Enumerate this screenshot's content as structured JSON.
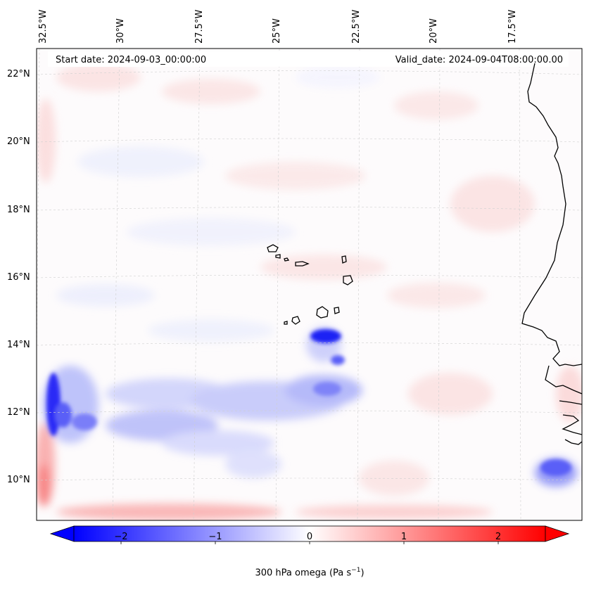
{
  "header": {
    "start_date": "Start date: 2024-09-03_00:00:00",
    "valid_date": "Valid_date: 2024-09-04T08:00:00.00"
  },
  "axes": {
    "lon_labels": [
      "32.5°W",
      "30°W",
      "27.5°W",
      "25°W",
      "22.5°W",
      "20°W",
      "17.5°W"
    ],
    "lat_labels": [
      "22°N",
      "20°N",
      "18°N",
      "16°N",
      "14°N",
      "12°N",
      "10°N"
    ]
  },
  "colorbar": {
    "ticks": [
      "−2",
      "−1",
      "0",
      "1",
      "2"
    ],
    "label": "300 hPa omega (Pa s",
    "label_sup": "−1",
    "label_end": ")",
    "vmin": -2.6,
    "vmax": 2.6,
    "neg_color": "#0000ff",
    "pos_color": "#ff0000"
  },
  "map": {
    "field": "300 hPa omega",
    "features": [
      "Cabo Verde islands",
      "West African coastline (Senegal, Gambia, Guinea-Bissau)"
    ],
    "colormap": "bwr",
    "gridlines": true
  }
}
